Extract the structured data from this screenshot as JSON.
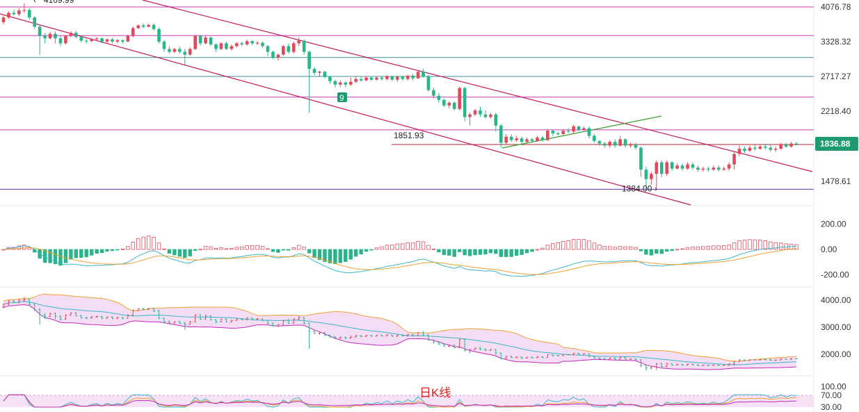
{
  "chart_data": {
    "type": "candlestick",
    "title": "日K线",
    "colors": {
      "up": "#e04b5c",
      "down": "#2bb38a",
      "channel": "#c2185b",
      "trend": "#3c9a2a",
      "hline_magenta": "#c837b8",
      "hline_teal": "#3d8f8f",
      "hline_purple": "#6b2fb3",
      "hline_red": "#b81c2c",
      "pricetag": "#1e9b6e",
      "band_fill": "#f1d6f4",
      "ma_teal": "#3ab6c8",
      "ma_orange": "#f0a030",
      "ma_magenta": "#c02ab8"
    },
    "price_panel": {
      "y_ticks": [
        "4076.78",
        "3328.32",
        "2717.27",
        "2218.40",
        "1836.88",
        "1478.61"
      ],
      "y_tick_values": [
        4076.78,
        3328.32,
        2717.27,
        2218.4,
        1836.88,
        1478.61
      ],
      "current_price": "1836.88",
      "annotations": [
        {
          "text": "4109.99",
          "value": 4109.99
        },
        {
          "text": "1851.93",
          "value": 1851.93
        },
        {
          "text": "1384.00",
          "value": 1384.0
        }
      ],
      "marker": "9",
      "horizontal_levels": [
        {
          "value": 4076.78,
          "color": "hline_magenta"
        },
        {
          "value": 3460,
          "color": "hline_magenta"
        },
        {
          "value": 3050,
          "color": "hline_teal"
        },
        {
          "value": 2717.27,
          "color": "hline_teal"
        },
        {
          "value": 2420,
          "color": "hline_magenta"
        },
        {
          "value": 2000,
          "color": "hline_magenta"
        },
        {
          "value": 1410,
          "color": "hline_purple"
        }
      ],
      "resistance_level": {
        "value": 1830,
        "color": "hline_red"
      }
    },
    "macd_panel": {
      "y_ticks": [
        "200.00",
        "0.00",
        "-200.00"
      ],
      "y_tick_values": [
        200,
        0,
        -200
      ]
    },
    "boll_panel": {
      "y_ticks": [
        "4000.00",
        "3000.00",
        "2000.00"
      ],
      "y_tick_values": [
        4000,
        3000,
        2000
      ]
    },
    "rsi_panel": {
      "y_ticks": [
        "100.00",
        "70.00",
        "30.00"
      ],
      "y_tick_values": [
        100,
        70,
        30
      ]
    },
    "candles": [
      [
        3750,
        3850,
        3700,
        3880
      ],
      [
        3850,
        3950,
        3820,
        3990
      ],
      [
        3950,
        3920,
        3890,
        4020
      ],
      [
        3920,
        4000,
        3880,
        4050
      ],
      [
        4000,
        4010,
        3950,
        4110
      ],
      [
        4010,
        3850,
        3800,
        4050
      ],
      [
        3850,
        3650,
        3600,
        3880
      ],
      [
        3650,
        3450,
        3100,
        3700
      ],
      [
        3450,
        3400,
        3300,
        3520
      ],
      [
        3400,
        3500,
        3380,
        3540
      ],
      [
        3500,
        3400,
        3300,
        3550
      ],
      [
        3400,
        3300,
        3250,
        3450
      ],
      [
        3300,
        3450,
        3280,
        3480
      ],
      [
        3450,
        3520,
        3420,
        3560
      ],
      [
        3520,
        3430,
        3400,
        3560
      ],
      [
        3430,
        3350,
        3320,
        3460
      ],
      [
        3350,
        3340,
        3300,
        3380
      ],
      [
        3340,
        3380,
        3320,
        3410
      ],
      [
        3380,
        3400,
        3340,
        3430
      ],
      [
        3400,
        3330,
        3300,
        3420
      ],
      [
        3330,
        3380,
        3310,
        3400
      ],
      [
        3380,
        3330,
        3300,
        3410
      ],
      [
        3330,
        3360,
        3300,
        3390
      ],
      [
        3360,
        3330,
        3290,
        3380
      ],
      [
        3330,
        3450,
        3320,
        3480
      ],
      [
        3450,
        3620,
        3420,
        3660
      ],
      [
        3620,
        3680,
        3600,
        3700
      ],
      [
        3680,
        3650,
        3620,
        3720
      ],
      [
        3650,
        3690,
        3640,
        3720
      ],
      [
        3690,
        3600,
        3560,
        3720
      ],
      [
        3600,
        3330,
        3300,
        3640
      ],
      [
        3330,
        3200,
        3150,
        3360
      ],
      [
        3200,
        3150,
        3120,
        3250
      ],
      [
        3150,
        3200,
        3130,
        3220
      ],
      [
        3200,
        3150,
        3120,
        3240
      ],
      [
        3150,
        3100,
        2900,
        3200
      ],
      [
        3100,
        3200,
        3080,
        3230
      ],
      [
        3200,
        3450,
        3180,
        3480
      ],
      [
        3450,
        3300,
        3260,
        3480
      ],
      [
        3300,
        3420,
        3280,
        3460
      ],
      [
        3420,
        3280,
        3250,
        3440
      ],
      [
        3280,
        3200,
        3150,
        3300
      ],
      [
        3200,
        3300,
        3180,
        3320
      ],
      [
        3300,
        3200,
        3180,
        3330
      ],
      [
        3200,
        3250,
        3170,
        3280
      ],
      [
        3250,
        3300,
        3230,
        3320
      ],
      [
        3300,
        3280,
        3250,
        3330
      ],
      [
        3280,
        3340,
        3260,
        3370
      ],
      [
        3340,
        3300,
        3270,
        3360
      ],
      [
        3300,
        3310,
        3270,
        3340
      ],
      [
        3310,
        3250,
        3220,
        3330
      ],
      [
        3250,
        3150,
        3080,
        3270
      ],
      [
        3150,
        3050,
        3020,
        3170
      ],
      [
        3050,
        3100,
        3000,
        3120
      ],
      [
        3100,
        3250,
        3080,
        3270
      ],
      [
        3250,
        3150,
        3120,
        3300
      ],
      [
        3150,
        3300,
        3120,
        3330
      ],
      [
        3300,
        3350,
        3250,
        3420
      ],
      [
        3350,
        3150,
        3100,
        3380
      ],
      [
        3150,
        2850,
        2200,
        3170
      ],
      [
        2850,
        2780,
        2740,
        2880
      ],
      [
        2780,
        2800,
        2720,
        2820
      ],
      [
        2800,
        2710,
        2690,
        2820
      ],
      [
        2710,
        2650,
        2610,
        2730
      ],
      [
        2650,
        2600,
        2560,
        2670
      ],
      [
        2600,
        2630,
        2570,
        2660
      ],
      [
        2630,
        2600,
        2560,
        2650
      ],
      [
        2600,
        2640,
        2580,
        2700
      ],
      [
        2640,
        2680,
        2620,
        2720
      ],
      [
        2680,
        2660,
        2640,
        2710
      ],
      [
        2660,
        2700,
        2650,
        2720
      ],
      [
        2700,
        2670,
        2650,
        2720
      ],
      [
        2670,
        2700,
        2660,
        2720
      ],
      [
        2700,
        2680,
        2660,
        2720
      ],
      [
        2680,
        2720,
        2660,
        2740
      ],
      [
        2720,
        2670,
        2650,
        2730
      ],
      [
        2670,
        2710,
        2640,
        2730
      ],
      [
        2710,
        2680,
        2660,
        2730
      ],
      [
        2680,
        2730,
        2660,
        2750
      ],
      [
        2730,
        2690,
        2660,
        2760
      ],
      [
        2690,
        2800,
        2680,
        2830
      ],
      [
        2800,
        2720,
        2700,
        2850
      ],
      [
        2720,
        2520,
        2500,
        2740
      ],
      [
        2520,
        2440,
        2400,
        2560
      ],
      [
        2440,
        2380,
        2340,
        2480
      ],
      [
        2380,
        2300,
        2280,
        2400
      ],
      [
        2300,
        2340,
        2260,
        2360
      ],
      [
        2340,
        2250,
        2230,
        2360
      ],
      [
        2250,
        2550,
        2230,
        2570
      ],
      [
        2550,
        2150,
        2100,
        2570
      ],
      [
        2150,
        2180,
        2050,
        2200
      ],
      [
        2180,
        2230,
        2160,
        2250
      ],
      [
        2230,
        2180,
        2150,
        2280
      ],
      [
        2180,
        2150,
        2130,
        2230
      ],
      [
        2150,
        2180,
        2130,
        2200
      ],
      [
        2180,
        2050,
        1980,
        2200
      ],
      [
        2050,
        1850,
        1800,
        2070
      ],
      [
        1850,
        1920,
        1830,
        1950
      ],
      [
        1920,
        1880,
        1860,
        1950
      ],
      [
        1880,
        1900,
        1860,
        1930
      ],
      [
        1900,
        1860,
        1840,
        1920
      ],
      [
        1860,
        1890,
        1840,
        1910
      ],
      [
        1890,
        1870,
        1850,
        1910
      ],
      [
        1870,
        1910,
        1860,
        1930
      ],
      [
        1910,
        1880,
        1860,
        1930
      ],
      [
        1880,
        1990,
        1870,
        2010
      ],
      [
        1990,
        1960,
        1930,
        2000
      ],
      [
        1960,
        1950,
        1930,
        1980
      ],
      [
        1950,
        1990,
        1940,
        2010
      ],
      [
        1990,
        1980,
        1960,
        2020
      ],
      [
        1980,
        2040,
        1960,
        2060
      ],
      [
        2040,
        2000,
        1980,
        2050
      ],
      [
        2000,
        2020,
        1990,
        2040
      ],
      [
        2020,
        1930,
        1900,
        2040
      ],
      [
        1930,
        1870,
        1850,
        1950
      ],
      [
        1870,
        1840,
        1820,
        1880
      ],
      [
        1840,
        1820,
        1800,
        1860
      ],
      [
        1820,
        1860,
        1800,
        1880
      ],
      [
        1860,
        1820,
        1800,
        1890
      ],
      [
        1820,
        1890,
        1810,
        1930
      ],
      [
        1890,
        1820,
        1800,
        1900
      ],
      [
        1820,
        1830,
        1800,
        1850
      ],
      [
        1830,
        1800,
        1780,
        1850
      ],
      [
        1800,
        1590,
        1520,
        1810
      ],
      [
        1590,
        1500,
        1400,
        1620
      ],
      [
        1500,
        1550,
        1450,
        1570
      ],
      [
        1550,
        1660,
        1420,
        1680
      ],
      [
        1660,
        1550,
        1520,
        1680
      ],
      [
        1550,
        1660,
        1530,
        1680
      ],
      [
        1660,
        1600,
        1580,
        1670
      ],
      [
        1600,
        1630,
        1590,
        1650
      ],
      [
        1630,
        1600,
        1580,
        1650
      ],
      [
        1600,
        1640,
        1590,
        1660
      ],
      [
        1640,
        1610,
        1590,
        1660
      ],
      [
        1610,
        1590,
        1570,
        1630
      ],
      [
        1590,
        1600,
        1570,
        1620
      ],
      [
        1600,
        1590,
        1570,
        1620
      ],
      [
        1590,
        1610,
        1580,
        1630
      ],
      [
        1610,
        1590,
        1570,
        1630
      ],
      [
        1590,
        1600,
        1580,
        1620
      ],
      [
        1600,
        1640,
        1580,
        1660
      ],
      [
        1640,
        1740,
        1590,
        1760
      ],
      [
        1740,
        1790,
        1720,
        1820
      ],
      [
        1790,
        1770,
        1750,
        1810
      ],
      [
        1770,
        1800,
        1760,
        1820
      ],
      [
        1800,
        1790,
        1770,
        1830
      ],
      [
        1790,
        1810,
        1780,
        1830
      ],
      [
        1810,
        1800,
        1780,
        1840
      ],
      [
        1800,
        1780,
        1760,
        1830
      ],
      [
        1780,
        1790,
        1760,
        1810
      ],
      [
        1790,
        1830,
        1780,
        1850
      ],
      [
        1830,
        1810,
        1800,
        1850
      ],
      [
        1810,
        1840,
        1800,
        1860
      ],
      [
        1840,
        1837,
        1820,
        1860
      ]
    ]
  }
}
